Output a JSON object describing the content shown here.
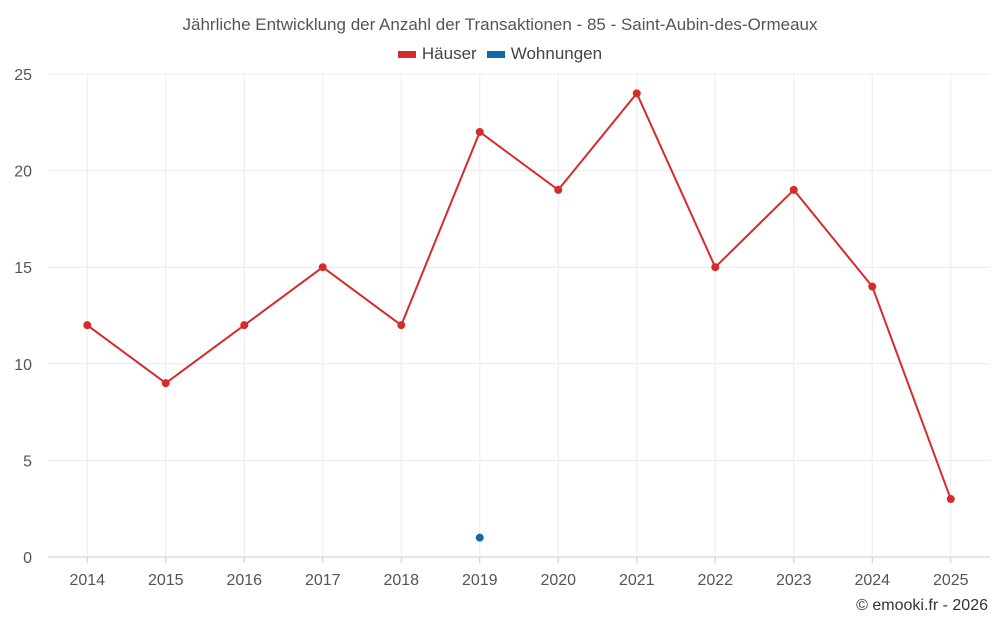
{
  "chart_data": {
    "type": "line",
    "title": "Jährliche Entwicklung der Anzahl der Transaktionen - 85 - Saint-Aubin-des-Ormeaux",
    "categories": [
      "2014",
      "2015",
      "2016",
      "2017",
      "2018",
      "2019",
      "2020",
      "2021",
      "2022",
      "2023",
      "2024",
      "2025"
    ],
    "series": [
      {
        "name": "Häuser",
        "color": "#d42b2b",
        "values": [
          12,
          9,
          12,
          15,
          12,
          22,
          19,
          24,
          15,
          19,
          14,
          3
        ]
      },
      {
        "name": "Wohnungen",
        "color": "#0f6aa8",
        "values": [
          null,
          null,
          null,
          null,
          null,
          1,
          null,
          null,
          null,
          null,
          null,
          null
        ]
      }
    ],
    "ylim": [
      0,
      25
    ],
    "yticks": [
      0,
      5,
      10,
      15,
      20,
      25
    ],
    "xlabel": "",
    "ylabel": "",
    "grid": true,
    "legend_position": "top-center"
  },
  "credit": "© emooki.fr - 2026"
}
